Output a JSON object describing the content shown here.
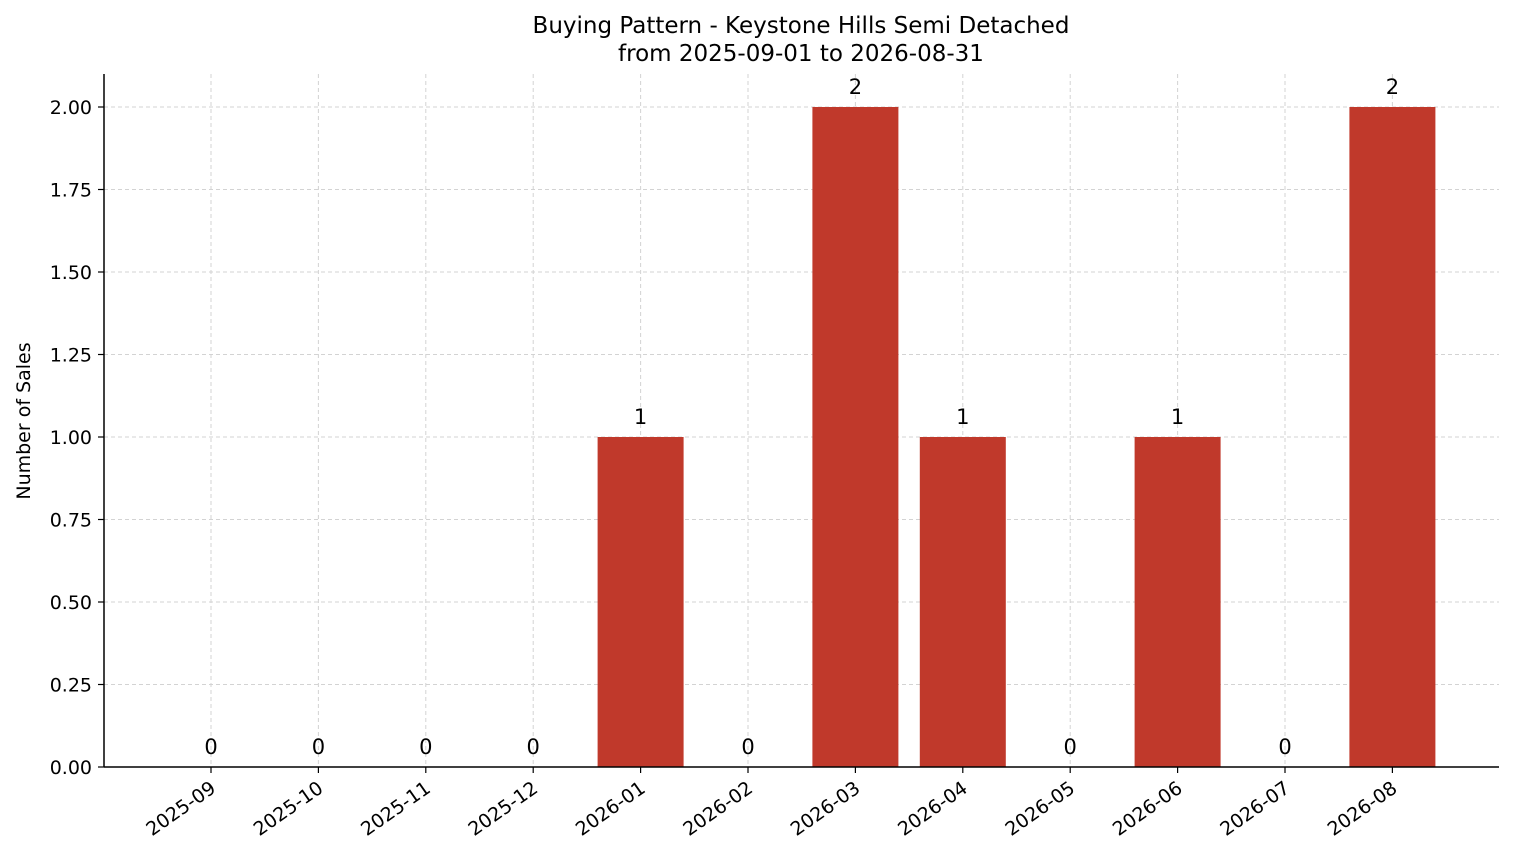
{
  "chart_data": {
    "type": "bar",
    "title": "Buying Pattern - Keystone Hills Semi Detached",
    "subtitle": "from 2025-09-01 to 2026-08-31",
    "xlabel": "",
    "ylabel": "Number of Sales",
    "categories": [
      "2025-09",
      "2025-10",
      "2025-11",
      "2025-12",
      "2026-01",
      "2026-02",
      "2026-03",
      "2026-04",
      "2026-05",
      "2026-06",
      "2026-07",
      "2026-08"
    ],
    "values": [
      0,
      0,
      0,
      0,
      1,
      0,
      2,
      1,
      0,
      1,
      0,
      2
    ],
    "data_labels": [
      "0",
      "0",
      "0",
      "0",
      "1",
      "0",
      "2",
      "1",
      "0",
      "1",
      "0",
      "2"
    ],
    "ylim": [
      0,
      2.1
    ],
    "yticks": [
      "0.00",
      "0.25",
      "0.50",
      "0.75",
      "1.00",
      "1.25",
      "1.50",
      "1.75",
      "2.00"
    ],
    "grid": true,
    "bar_color": "#c0392b",
    "grid_color": "#d3d3d3"
  }
}
